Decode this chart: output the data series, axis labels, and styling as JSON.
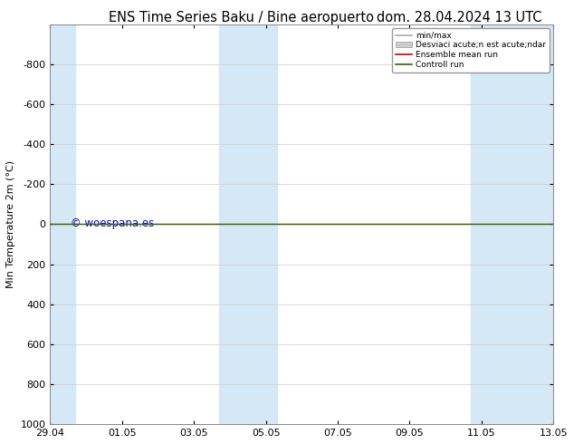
{
  "title_left": "ENS Time Series Baku / Bine aeropuerto",
  "title_right": "dom. 28.04.2024 13 UTC",
  "ylabel": "Min Temperature 2m (°C)",
  "ylim_min": -1000,
  "ylim_max": 1000,
  "yticks": [
    -800,
    -600,
    -400,
    -200,
    0,
    200,
    400,
    600,
    800,
    1000
  ],
  "xtick_labels": [
    "29.04",
    "01.05",
    "03.05",
    "05.05",
    "07.05",
    "09.05",
    "11.05",
    "13.05"
  ],
  "xtick_positions": [
    0,
    2,
    4,
    6,
    8,
    10,
    12,
    14
  ],
  "x_min": 0,
  "x_max": 14,
  "shaded_ranges": [
    [
      0,
      0.7
    ],
    [
      4.7,
      6.3
    ],
    [
      11.7,
      14
    ]
  ],
  "shaded_color": "#d5e8f5",
  "green_line_color": "#336600",
  "red_line_color": "#cc0000",
  "watermark": "© woespana.es",
  "watermark_color": "#0000bb",
  "legend_label_0": "min/max",
  "legend_label_1": "Desviaci acute;n est acute;ndar",
  "legend_label_2": "Ensemble mean run",
  "legend_label_3": "Controll run",
  "legend_color_0": "#aaaaaa",
  "legend_color_1": "#cccccc",
  "legend_color_2": "#cc0000",
  "legend_color_3": "#336600",
  "bg_color": "#ffffff",
  "title_fontsize": 10.5,
  "axis_label_fontsize": 8,
  "tick_fontsize": 8
}
